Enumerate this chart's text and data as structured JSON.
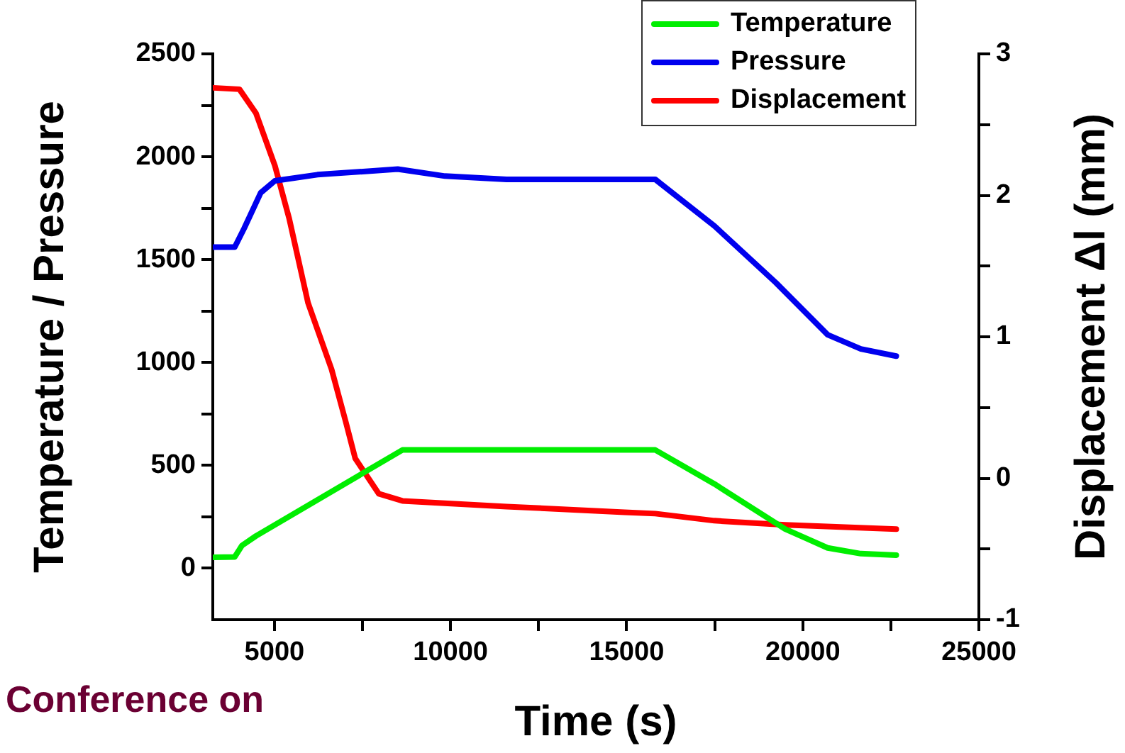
{
  "chart_data": {
    "type": "line",
    "xlabel": "Time (s)",
    "ylabel": "Temperature / Pressure",
    "y2label": "Displacement Δl (mm)",
    "annotations": [
      "Conference on"
    ],
    "xlim": [
      3250,
      25000
    ],
    "xticks": [
      5000,
      {
        "value": 7500,
        "label": null
      },
      10000,
      {
        "value": 12500,
        "label": null
      },
      15000,
      {
        "value": 17500,
        "label": null
      },
      20000,
      {
        "value": 22500,
        "label": null
      },
      25000
    ],
    "ylim": [
      -250,
      2500
    ],
    "yticks": [
      0,
      {
        "value": 250,
        "label": null
      },
      500,
      {
        "value": 750,
        "label": null
      },
      1000,
      {
        "value": 1250,
        "label": null
      },
      1500,
      {
        "value": 1750,
        "label": null
      },
      2000,
      {
        "value": 2250,
        "label": null
      },
      2500
    ],
    "y2lim": [
      -1,
      3
    ],
    "y2ticks": [
      -1,
      {
        "value": -0.5,
        "label": null
      },
      0,
      {
        "value": 0.5,
        "label": null
      },
      1,
      {
        "value": 1.5,
        "label": null
      },
      2,
      {
        "value": 2.5,
        "label": null
      },
      3
    ],
    "legend": "top right",
    "marker": "none",
    "line_style": "solid",
    "grid": false,
    "series": [
      {
        "name": "Temperature",
        "color": "#00ee00",
        "x": [
          3270,
          3873,
          4075,
          4477,
          8634,
          15813,
          17490,
          19500,
          20707,
          21648,
          22654
        ],
        "values": [
          53,
          55,
          110,
          157,
          575,
          575,
          410,
          191,
          99,
          71,
          64
        ]
      },
      {
        "name": "Pressure",
        "color": "#0000ee",
        "x": [
          3270,
          3873,
          4143,
          4610,
          5013,
          6220,
          8501,
          9842,
          11590,
          15813,
          17490,
          19235,
          20707,
          21648,
          22654
        ],
        "values": [
          1561,
          1561,
          1653,
          1825,
          1883,
          1913,
          1940,
          1906,
          1890,
          1890,
          1664,
          1388,
          1135,
          1066,
          1031
        ]
      },
      {
        "name": "Displacement",
        "color": "#ff0000",
        "axis": "y2",
        "x": [
          3270,
          4006,
          4477,
          5013,
          5415,
          5954,
          6622,
          7024,
          7294,
          7965,
          8634,
          11590,
          14940,
          15813,
          17490,
          19500,
          22654
        ],
        "values": [
          2.76,
          2.75,
          2.58,
          2.21,
          1.84,
          1.24,
          0.77,
          0.4,
          0.14,
          -0.11,
          -0.16,
          -0.2,
          -0.24,
          -0.25,
          -0.3,
          -0.33,
          -0.36
        ]
      }
    ]
  }
}
